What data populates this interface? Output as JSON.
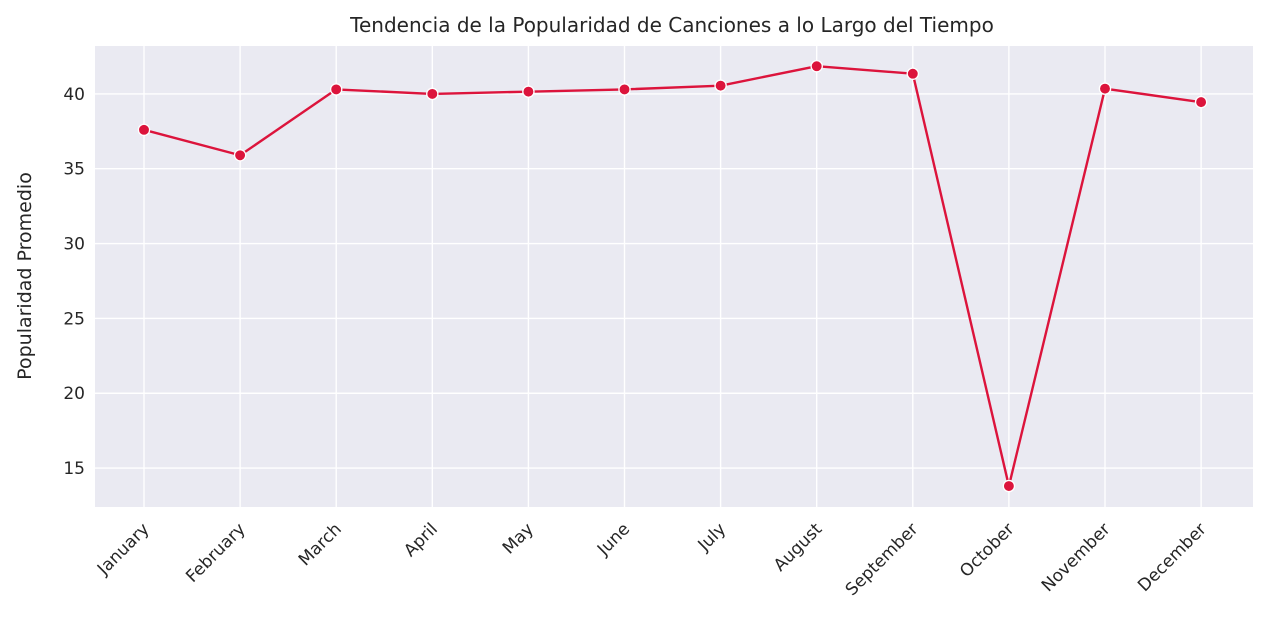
{
  "chart_data": {
    "type": "line",
    "title": "Tendencia de la Popularidad de Canciones a lo Largo del Tiempo",
    "xlabel": "",
    "ylabel": "Popularidad Promedio",
    "categories": [
      "January",
      "February",
      "March",
      "April",
      "May",
      "June",
      "July",
      "August",
      "September",
      "October",
      "November",
      "December"
    ],
    "series": [
      {
        "values": [
          37.6,
          35.9,
          40.3,
          40.0,
          40.15,
          40.3,
          40.55,
          41.85,
          41.35,
          13.8,
          40.35,
          39.45
        ]
      }
    ],
    "ylim": [
      12.4,
      43.2
    ],
    "yticks": [
      15,
      20,
      25,
      30,
      35,
      40
    ],
    "grid": true,
    "legend": "none",
    "colors": {
      "line": "#dc143c",
      "background": "#eaeaf2",
      "grid": "#ffffff"
    }
  }
}
